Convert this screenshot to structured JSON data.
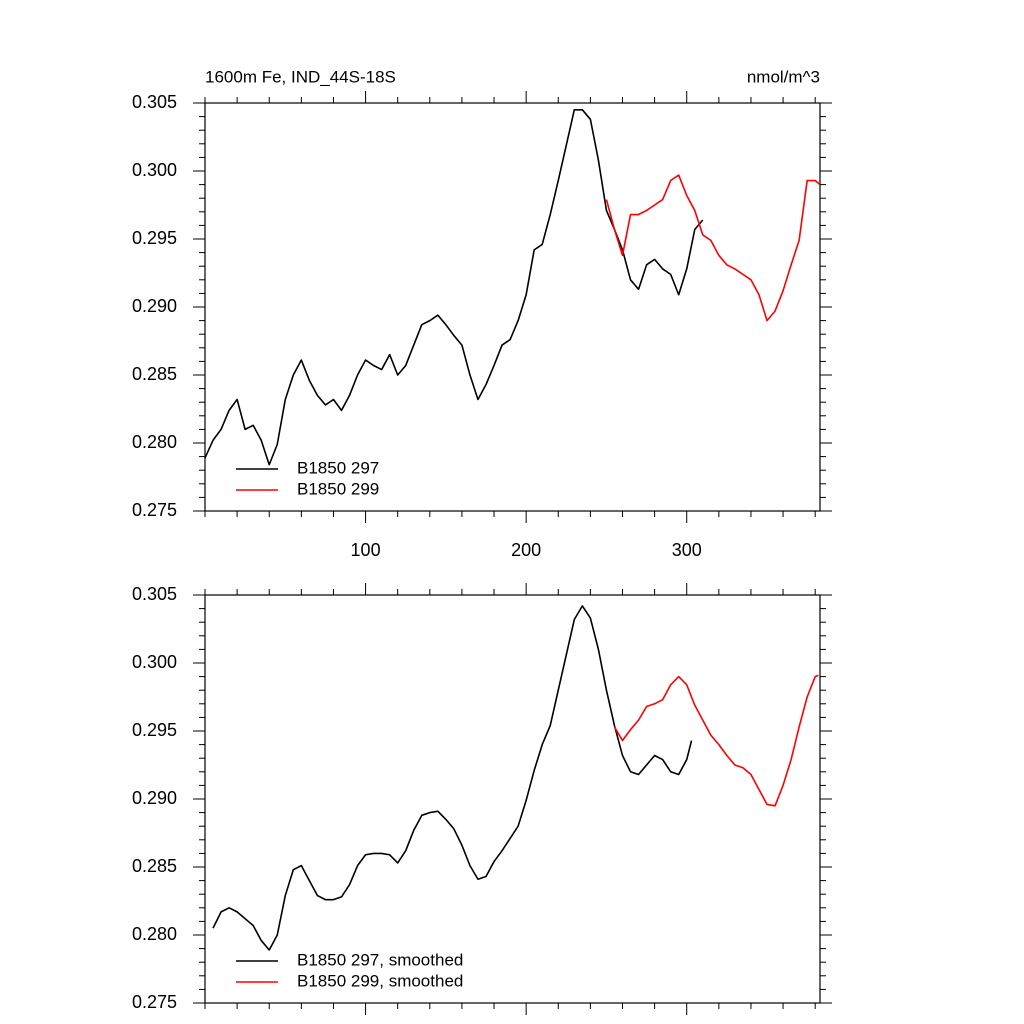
{
  "chart_data": [
    {
      "type": "line",
      "title": "1600m Fe, IND_44S-18S",
      "units": "nmol/m^3",
      "xlim": [
        0,
        383
      ],
      "xticks": [
        100,
        200,
        300
      ],
      "ylim": [
        0.275,
        0.305
      ],
      "yticks": [
        0.275,
        {
          "value": 0.28,
          "label": "0.280"
        },
        0.285,
        {
          "value": 0.29,
          "label": "0.290"
        },
        0.295,
        {
          "value": 0.3,
          "label": "0.300"
        },
        0.305
      ],
      "legend": "lower left",
      "series": [
        {
          "name": "B1850 297",
          "color": "#000000",
          "x": [
            0,
            5,
            10,
            15,
            20,
            25,
            30,
            35,
            40,
            45,
            50,
            55,
            60,
            65,
            70,
            75,
            80,
            85,
            90,
            95,
            100,
            105,
            110,
            115,
            120,
            125,
            130,
            135,
            140,
            145,
            150,
            155,
            160,
            165,
            170,
            175,
            180,
            185,
            190,
            195,
            200,
            205,
            210,
            215,
            220,
            225,
            230,
            235,
            240,
            245,
            250,
            255,
            260,
            265,
            270,
            275,
            280,
            285,
            290,
            295,
            300,
            305,
            310
          ],
          "values": [
            0.2789,
            0.2802,
            0.281,
            0.2824,
            0.2832,
            0.281,
            0.2813,
            0.2802,
            0.2784,
            0.2799,
            0.2832,
            0.285,
            0.2861,
            0.2846,
            0.2835,
            0.2828,
            0.2832,
            0.2824,
            0.2835,
            0.285,
            0.2861,
            0.2857,
            0.2854,
            0.2865,
            0.285,
            0.2857,
            0.2872,
            0.2887,
            0.289,
            0.2894,
            0.2887,
            0.2879,
            0.2872,
            0.285,
            0.2832,
            0.2843,
            0.2857,
            0.2872,
            0.2876,
            0.289,
            0.2909,
            0.2942,
            0.2946,
            0.2968,
            0.2993,
            0.3019,
            0.3045,
            0.3045,
            0.3038,
            0.3008,
            0.2971,
            0.2957,
            0.2942,
            0.292,
            0.2913,
            0.2931,
            0.2935,
            0.2928,
            0.2924,
            0.2909,
            0.2928,
            0.2957,
            0.2964
          ]
        },
        {
          "name": "B1850 299",
          "color": "#ff0000",
          "x": [
            250,
            255,
            260,
            265,
            270,
            275,
            280,
            285,
            290,
            295,
            300,
            305,
            310,
            315,
            320,
            325,
            330,
            335,
            340,
            345,
            350,
            355,
            360,
            365,
            370,
            375,
            380,
            383
          ],
          "values": [
            0.2979,
            0.2957,
            0.2938,
            0.2968,
            0.2968,
            0.2971,
            0.2975,
            0.2979,
            0.2993,
            0.2997,
            0.2982,
            0.2971,
            0.2953,
            0.2949,
            0.2938,
            0.2931,
            0.2928,
            0.2924,
            0.292,
            0.2909,
            0.289,
            0.2897,
            0.2912,
            0.2931,
            0.2949,
            0.2993,
            0.2993,
            0.299
          ]
        }
      ]
    },
    {
      "type": "line",
      "xlim": [
        0,
        383
      ],
      "xticks": [
        100,
        200,
        300
      ],
      "ylim": [
        0.275,
        0.305
      ],
      "yticks": [
        0.275,
        {
          "value": 0.28,
          "label": "0.280"
        },
        0.285,
        {
          "value": 0.29,
          "label": "0.290"
        },
        0.295,
        {
          "value": 0.3,
          "label": "0.300"
        },
        0.305
      ],
      "legend": "lower left",
      "series": [
        {
          "name": "B1850 297, smoothed",
          "color": "#000000",
          "x": [
            5,
            10,
            15,
            20,
            25,
            30,
            35,
            40,
            45,
            50,
            55,
            60,
            65,
            70,
            75,
            80,
            85,
            90,
            95,
            100,
            105,
            110,
            115,
            120,
            125,
            130,
            135,
            140,
            145,
            150,
            155,
            160,
            165,
            170,
            175,
            180,
            185,
            190,
            195,
            200,
            205,
            210,
            215,
            220,
            225,
            230,
            235,
            240,
            245,
            250,
            255,
            260,
            265,
            270,
            275,
            280,
            285,
            290,
            295,
            300,
            303
          ],
          "values": [
            0.2805,
            0.2817,
            0.282,
            0.2817,
            0.2812,
            0.2807,
            0.2796,
            0.2789,
            0.28,
            0.2829,
            0.2848,
            0.2851,
            0.284,
            0.2829,
            0.2826,
            0.2826,
            0.2828,
            0.2837,
            0.2851,
            0.2859,
            0.286,
            0.286,
            0.2859,
            0.2853,
            0.2862,
            0.2877,
            0.2888,
            0.289,
            0.2891,
            0.2885,
            0.2878,
            0.2866,
            0.2851,
            0.2841,
            0.2843,
            0.2854,
            0.2862,
            0.2871,
            0.288,
            0.2899,
            0.2921,
            0.294,
            0.2954,
            0.298,
            0.3006,
            0.3032,
            0.3042,
            0.3033,
            0.301,
            0.298,
            0.2954,
            0.2932,
            0.292,
            0.2918,
            0.2925,
            0.2932,
            0.2929,
            0.292,
            0.2918,
            0.2929,
            0.2943
          ]
        },
        {
          "name": "B1850 299, smoothed",
          "color": "#ff0000",
          "x": [
            255,
            260,
            265,
            270,
            275,
            280,
            285,
            290,
            295,
            300,
            305,
            310,
            315,
            320,
            325,
            330,
            335,
            340,
            345,
            350,
            355,
            360,
            365,
            370,
            375,
            380,
            382
          ],
          "values": [
            0.2953,
            0.2943,
            0.2951,
            0.2958,
            0.2968,
            0.297,
            0.2973,
            0.2984,
            0.299,
            0.2984,
            0.2969,
            0.2958,
            0.2947,
            0.294,
            0.2932,
            0.2925,
            0.2923,
            0.2918,
            0.2907,
            0.2896,
            0.2895,
            0.291,
            0.2929,
            0.2953,
            0.2975,
            0.299,
            0.2991
          ]
        }
      ]
    }
  ]
}
